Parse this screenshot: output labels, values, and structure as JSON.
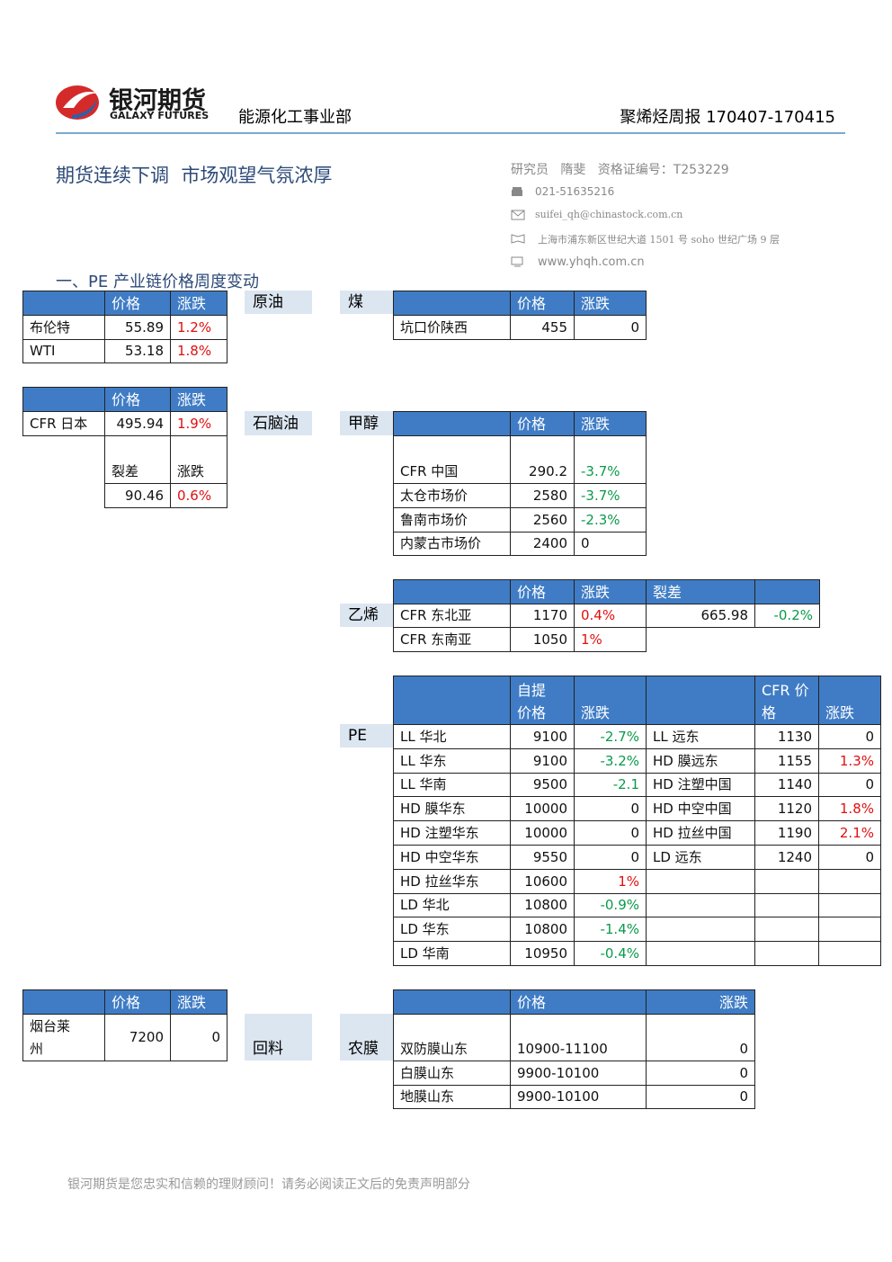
{
  "header": {
    "logo_name": "银河期货",
    "logo_english": "GALAXY FUTURES",
    "department": "能源化工事业部",
    "report": "聚烯烃周报 170407-170415"
  },
  "headline": "期货连续下调  市场观望气氛浓厚",
  "contact": {
    "analyst": "研究员   隋斐   资格证编号：T253229",
    "phone": "021-51635216",
    "email": "suifei_qh@chinastock.com.cn",
    "address": "上海市浦东新区世纪大道 1501 号 soho 世纪广场 9 层",
    "website": "www.yhqh.com.cn"
  },
  "section_title": "一、PE 产业链价格周度变动",
  "labels": {
    "crude": "原油",
    "coal": "煤",
    "naphtha": "石脑油",
    "methanol": "甲醇",
    "ethylene": "乙烯",
    "pe": "PE",
    "recycled": "回料",
    "agri_film": "农膜"
  },
  "crude": {
    "columns": [
      "价格",
      "涨跌"
    ],
    "rows": [
      [
        "布伦特",
        "55.89",
        "1.2%"
      ],
      [
        "WTI",
        "53.18",
        "1.8%"
      ]
    ]
  },
  "coal": {
    "columns": [
      "价格",
      "涨跌"
    ],
    "rows": [
      [
        "坑口价陕西",
        "455",
        "0"
      ]
    ]
  },
  "naphtha": {
    "columns": [
      "价格",
      "涨跌"
    ],
    "rows": [
      [
        "CFR 日本",
        "495.94",
        "1.9%"
      ]
    ],
    "spread_columns": [
      "裂差",
      "涨跌"
    ],
    "spread": [
      "90.46",
      "0.6%"
    ]
  },
  "methanol": {
    "columns": [
      "价格",
      "涨跌"
    ],
    "rows": [
      [
        "CFR 中国",
        "290.2",
        "-3.7%"
      ],
      [
        "太仓市场价",
        "2580",
        "-3.7%"
      ],
      [
        "鲁南市场价",
        "2560",
        "-2.3%"
      ],
      [
        "内蒙古市场价",
        "2400",
        "0"
      ]
    ]
  },
  "ethylene": {
    "columns": [
      "价格",
      "涨跌",
      "裂差"
    ],
    "rows": [
      [
        "CFR 东北亚",
        "1170",
        "0.4%",
        "665.98",
        "-0.2%"
      ],
      [
        "CFR 东南亚",
        "1050",
        "1%"
      ]
    ]
  },
  "pe": {
    "columns": [
      "自提\n价格",
      "涨跌",
      "CFR 价\n格",
      "涨跌"
    ],
    "rows": [
      [
        "LL 华北",
        "9100",
        "-2.7%",
        "LL 远东",
        "1130",
        "0"
      ],
      [
        "LL 华东",
        "9100",
        "-3.2%",
        "HD 膜远东",
        "1155",
        "1.3%"
      ],
      [
        "LL 华南",
        "9500",
        "-2.1",
        "HD 注塑中国",
        "1140",
        "0"
      ],
      [
        "HD 膜华东",
        "10000",
        "0",
        "HD 中空中国",
        "1120",
        "1.8%"
      ],
      [
        "HD 注塑华东",
        "10000",
        "0",
        "HD 拉丝中国",
        "1190",
        "2.1%"
      ],
      [
        "HD 中空华东",
        "9550",
        "0",
        "LD 远东",
        "1240",
        "0"
      ],
      [
        "HD 拉丝华东",
        "10600",
        "1%"
      ],
      [
        "LD 华北",
        "10800",
        "-0.9%"
      ],
      [
        "LD 华东",
        "10800",
        "-1.4%"
      ],
      [
        "LD 华南",
        "10950",
        "-0.4%"
      ]
    ]
  },
  "recycled": {
    "columns": [
      "价格",
      "涨跌"
    ],
    "rows": [
      [
        "烟台莱\n州",
        "7200",
        "0"
      ]
    ]
  },
  "agri_film": {
    "columns": [
      "价格",
      "涨跌"
    ],
    "rows": [
      [
        "双防膜山东",
        "10900-11100",
        "0"
      ],
      [
        "白膜山东",
        "9900-10100",
        "0"
      ],
      [
        "地膜山东",
        "9900-10100",
        "0"
      ]
    ]
  },
  "footer": "银河期货是您忠实和信赖的理财顾问！请务必阅读正文后的免责声明部分"
}
